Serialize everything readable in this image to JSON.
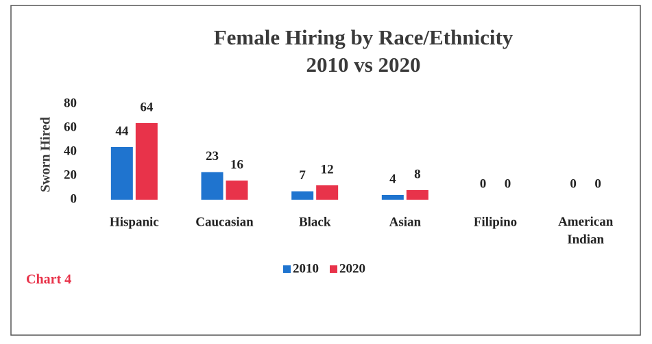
{
  "chart_data": {
    "type": "bar",
    "title": "Female Hiring by Race/Ethnicity",
    "subtitle": "2010 vs 2020",
    "y_label": "Sworn Hired",
    "annotation": "Chart 4",
    "categories": [
      "Hispanic",
      "Caucasian",
      "Black",
      "Asian",
      "Filipino",
      "American Indian"
    ],
    "series": [
      {
        "name": "2010",
        "color": "#1f74cf",
        "values": [
          44,
          23,
          7,
          4,
          0,
          0
        ]
      },
      {
        "name": "2020",
        "color": "#e8334a",
        "values": [
          64,
          16,
          12,
          8,
          0,
          0
        ]
      }
    ],
    "ylim": [
      0,
      80
    ],
    "yticks": [
      0,
      20,
      40,
      60,
      80
    ],
    "grid": false,
    "legend": "bottom"
  }
}
